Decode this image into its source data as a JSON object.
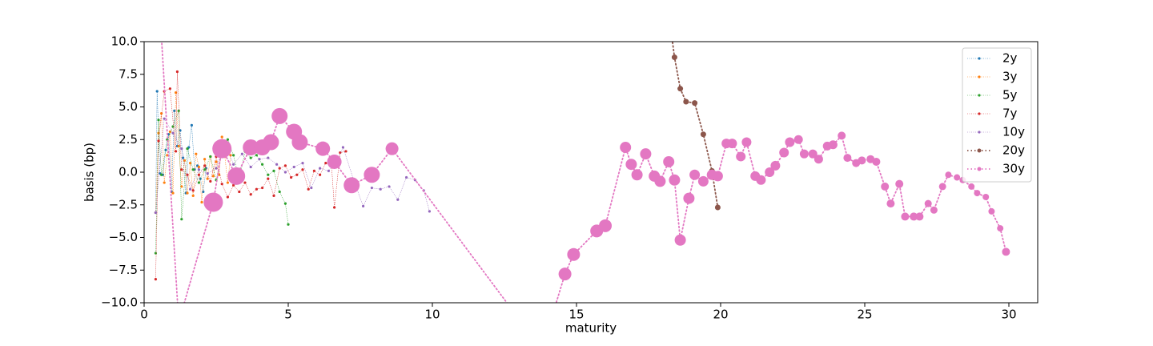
{
  "chart_data": {
    "type": "line",
    "xlabel": "maturity",
    "ylabel": "basis (bp)",
    "xlim": [
      0,
      31
    ],
    "ylim": [
      -10,
      10
    ],
    "xticks": [
      0,
      5,
      10,
      15,
      20,
      25,
      30
    ],
    "yticks": [
      {
        "value": -10,
        "label": "−10.0"
      },
      {
        "value": -7.5,
        "label": "−7.5"
      },
      {
        "value": -5,
        "label": "−5.0"
      },
      {
        "value": -2.5,
        "label": "−2.5"
      },
      {
        "value": 0,
        "label": "0.0"
      },
      {
        "value": 2.5,
        "label": "2.5"
      },
      {
        "value": 5,
        "label": "5.0"
      },
      {
        "value": 7.5,
        "label": "7.5"
      },
      {
        "value": 10,
        "label": "10.0"
      }
    ],
    "legend": "upper right",
    "series": [
      {
        "name": "2y",
        "color": "#1f77b4",
        "line_width": 0.5,
        "marker_size": 1.6,
        "x": [
          0.4,
          0.45,
          0.55,
          0.65,
          0.75,
          0.85,
          0.95,
          1.05,
          1.15,
          1.25,
          1.35,
          1.45,
          1.55,
          1.65,
          1.75,
          1.85,
          1.95,
          2.05,
          2.15
        ],
        "values": [
          -3.1,
          6.2,
          -0.1,
          -0.2,
          1.7,
          2.9,
          -1.5,
          4.7,
          2.0,
          3.2,
          1.1,
          -1.6,
          1.9,
          3.6,
          0.2,
          0.5,
          -0.5,
          -1.5,
          0.3
        ]
      },
      {
        "name": "3y",
        "color": "#ff7f0e",
        "line_width": 0.5,
        "marker_size": 1.6,
        "x": [
          0.4,
          0.5,
          0.6,
          0.7,
          0.8,
          0.9,
          1.0,
          1.1,
          1.2,
          1.3,
          1.4,
          1.5,
          1.6,
          1.7,
          1.8,
          1.9,
          2.0,
          2.1,
          2.2,
          2.3,
          2.4,
          2.5,
          2.6,
          2.7,
          2.8,
          2.9,
          3.0
        ],
        "values": [
          -3.1,
          3.0,
          4.5,
          -0.8,
          1.3,
          3.1,
          -1.6,
          6.1,
          2.0,
          -1.1,
          0.9,
          -1.6,
          0.7,
          -1.8,
          1.4,
          0.4,
          -2.3,
          1.0,
          -0.5,
          1.2,
          -0.3,
          0.8,
          -0.2,
          2.7,
          1.2,
          -0.8,
          1.3
        ]
      },
      {
        "name": "5y",
        "color": "#2ca02c",
        "line_width": 0.5,
        "marker_size": 1.6,
        "x": [
          0.4,
          0.5,
          0.6,
          0.8,
          1.0,
          1.2,
          1.3,
          1.5,
          1.7,
          1.9,
          2.1,
          2.3,
          2.5,
          2.7,
          2.9,
          3.1,
          3.3,
          3.5,
          3.7,
          3.9,
          4.1,
          4.3,
          4.5,
          4.7,
          4.9,
          5.0
        ],
        "values": [
          -6.2,
          4.0,
          -0.2,
          2.5,
          3.5,
          4.7,
          -3.6,
          1.8,
          0.2,
          -0.8,
          0.2,
          1.2,
          -0.6,
          1.5,
          2.5,
          1.3,
          -0.6,
          1.6,
          1.1,
          1.3,
          0.6,
          -0.2,
          0.1,
          -1.5,
          -2.4,
          -4.0
        ]
      },
      {
        "name": "7y",
        "color": "#d62728",
        "line_width": 0.5,
        "marker_size": 1.6,
        "x": [
          0.4,
          0.5,
          0.7,
          0.9,
          1.1,
          1.15,
          1.3,
          1.5,
          1.7,
          1.9,
          2.1,
          2.3,
          2.5,
          2.7,
          2.9,
          3.1,
          3.3,
          3.5,
          3.7,
          3.9,
          4.1,
          4.3,
          4.5,
          4.7,
          4.9,
          5.1,
          5.3,
          5.5,
          5.7,
          5.9,
          6.1,
          6.3,
          6.5,
          6.6,
          6.8,
          7.0
        ],
        "values": [
          -8.2,
          2.4,
          6.2,
          6.4,
          1.6,
          7.7,
          0.2,
          -0.2,
          -1.4,
          -0.2,
          0.5,
          -0.7,
          1.2,
          -0.9,
          -1.9,
          -1.0,
          -1.5,
          -0.8,
          -1.7,
          -1.3,
          -1.2,
          -0.5,
          -1.8,
          0.3,
          0.5,
          -0.4,
          -0.2,
          0.2,
          -1.3,
          0.1,
          -0.2,
          0.7,
          0.6,
          -2.7,
          1.5,
          1.6
        ]
      },
      {
        "name": "10y",
        "color": "#9467bd",
        "line_width": 0.5,
        "marker_size": 1.6,
        "x": [
          0.4,
          0.7,
          1.0,
          1.3,
          1.6,
          1.9,
          2.2,
          2.5,
          2.8,
          3.1,
          3.4,
          3.7,
          4.0,
          4.3,
          4.6,
          4.9,
          5.2,
          5.5,
          5.8,
          6.1,
          6.4,
          6.7,
          6.9,
          7.3,
          7.6,
          7.9,
          8.2,
          8.5,
          8.8,
          9.1,
          9.4,
          9.7,
          9.9
        ],
        "values": [
          -3.1,
          4.1,
          3.0,
          1.8,
          -1.3,
          0.2,
          -0.1,
          0.3,
          2.4,
          0.6,
          1.4,
          0.4,
          1.0,
          1.1,
          0.6,
          0.0,
          0.4,
          0.7,
          -1.2,
          0.3,
          0.1,
          0.9,
          1.9,
          -0.8,
          -2.6,
          -1.2,
          -1.3,
          -1.1,
          -2.1,
          -0.4,
          -0.6,
          -1.4,
          -3.0
        ]
      },
      {
        "name": "20y",
        "color": "#8c564b",
        "line_width": 1.8,
        "marker_size": 3.5,
        "x": [
          18.3,
          18.4,
          18.6,
          18.8,
          19.1,
          19.4,
          19.7,
          19.9
        ],
        "values": [
          10.5,
          8.8,
          6.4,
          5.4,
          5.3,
          2.9,
          0.1,
          -2.7
        ]
      },
      {
        "name": "30y",
        "color": "#e377c2",
        "line_width": 1.8,
        "marker_size": 3.5,
        "x": [
          0.5,
          1.2,
          2.4,
          2.7,
          3.2,
          3.7,
          4.1,
          4.4,
          4.7,
          5.2,
          5.4,
          6.2,
          6.6,
          7.2,
          7.9,
          8.6,
          13.8,
          14.6,
          14.9,
          15.7,
          16.0,
          16.7,
          16.9,
          17.1,
          17.4,
          17.7,
          17.9,
          18.2,
          18.4,
          18.6,
          18.9,
          19.1,
          19.4,
          19.7,
          19.9,
          20.2,
          20.4,
          20.7,
          20.9,
          21.2,
          21.4,
          21.7,
          21.9,
          22.2,
          22.4,
          22.7,
          22.9,
          23.2,
          23.4,
          23.7,
          23.9,
          24.2,
          24.4,
          24.7,
          24.9,
          25.2,
          25.4,
          25.7,
          25.9,
          26.2,
          26.4,
          26.7,
          26.9,
          27.2,
          27.4,
          27.7,
          27.9,
          28.2,
          28.4,
          28.7,
          28.9,
          29.2,
          29.4,
          29.7,
          29.9
        ],
        "values": [
          14,
          -11.5,
          -2.3,
          1.8,
          -0.3,
          1.9,
          1.9,
          2.3,
          4.3,
          3.1,
          2.3,
          1.8,
          0.8,
          -1.0,
          -0.2,
          1.8,
          -13.6,
          -7.8,
          -6.3,
          -4.5,
          -4.1,
          1.9,
          0.6,
          -0.2,
          1.4,
          -0.3,
          -0.7,
          0.8,
          -0.6,
          -5.2,
          -2.0,
          -0.2,
          -0.7,
          -0.2,
          -0.3,
          2.2,
          2.2,
          1.2,
          2.3,
          -0.3,
          -0.6,
          0.0,
          0.5,
          1.5,
          2.3,
          2.5,
          1.4,
          1.4,
          1.0,
          2.0,
          2.1,
          2.8,
          1.1,
          0.7,
          0.9,
          1.0,
          0.8,
          -1.1,
          -2.4,
          -0.9,
          -3.4,
          -3.4,
          -3.4,
          -2.4,
          -2.9,
          -1.1,
          -0.2,
          -0.4,
          -0.6,
          -1.1,
          -1.6,
          -1.9,
          -3.0,
          -4.3,
          -6.1
        ],
        "sizes": [
          12,
          12,
          12,
          12,
          11,
          10,
          10,
          10,
          10,
          10,
          10,
          9,
          9,
          10,
          10,
          8,
          8,
          8,
          8,
          8,
          8,
          7,
          7,
          7,
          7,
          7,
          7,
          7,
          7,
          7,
          7,
          6.5,
          6.5,
          6.5,
          6.5,
          6,
          6,
          6,
          6,
          6,
          6,
          6,
          6,
          6,
          6,
          5.5,
          5.5,
          5.5,
          5.5,
          5.5,
          5.5,
          5,
          5,
          5,
          5,
          5,
          5,
          5,
          5,
          5,
          5,
          5,
          5,
          4.5,
          4.5,
          4.5,
          4,
          4,
          4,
          4,
          4,
          4,
          4,
          4,
          5
        ]
      }
    ]
  }
}
